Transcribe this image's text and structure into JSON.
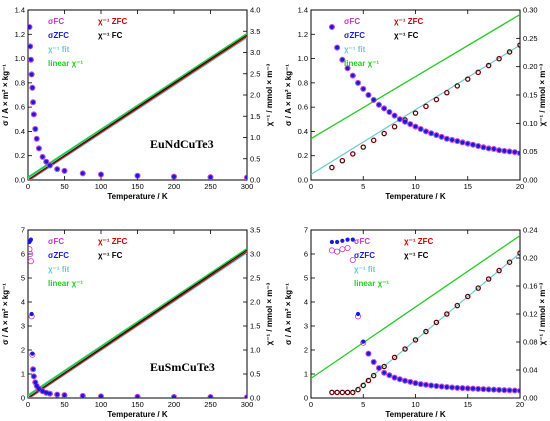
{
  "chart_data": [
    {
      "id": "p1",
      "type": "scatter",
      "compound_label": "EuNdCuTe3",
      "xlabel": "Temperature / K",
      "ylabel_left": "σ / A × m² × kg⁻¹",
      "ylabel_right": "χ⁻¹ / mmol × m⁻³",
      "xlim": [
        0,
        300
      ],
      "ylim_left": [
        0,
        1.4
      ],
      "ylim_right": [
        0,
        4.0
      ],
      "xticks": [
        0,
        50,
        100,
        150,
        200,
        250,
        300
      ],
      "yticks_left": [
        0.0,
        0.2,
        0.4,
        0.6,
        0.8,
        1.0,
        1.2,
        1.4
      ],
      "yticks_right": [
        0.0,
        0.5,
        1.0,
        1.5,
        2.0,
        2.5,
        3.0,
        3.5,
        4.0
      ],
      "legend": [
        "σFC",
        "σZFC",
        "χ⁻¹ ZFC",
        "χ⁻¹ FC",
        "χ⁻¹ fit",
        "linear χ⁻¹"
      ],
      "series": [
        {
          "name": "σFC",
          "axis": "left",
          "x": [
            2,
            3,
            4,
            5,
            6,
            7,
            8,
            10,
            12,
            15,
            20,
            25,
            30,
            40,
            50,
            75,
            100,
            150,
            200,
            250,
            300
          ],
          "values": [
            1.26,
            1.1,
            0.99,
            0.87,
            0.76,
            0.64,
            0.54,
            0.42,
            0.34,
            0.26,
            0.19,
            0.15,
            0.12,
            0.09,
            0.075,
            0.055,
            0.045,
            0.035,
            0.028,
            0.024,
            0.021
          ]
        },
        {
          "name": "σZFC",
          "axis": "left",
          "x": [
            2,
            3,
            4,
            5,
            6,
            7,
            8,
            10,
            12,
            15,
            20,
            25,
            30,
            40,
            50,
            75,
            100,
            150,
            200,
            250,
            300
          ],
          "values": [
            1.26,
            1.1,
            0.99,
            0.87,
            0.76,
            0.64,
            0.54,
            0.42,
            0.34,
            0.26,
            0.19,
            0.15,
            0.12,
            0.09,
            0.075,
            0.055,
            0.045,
            0.035,
            0.028,
            0.024,
            0.021
          ]
        },
        {
          "name": "χ⁻¹ ZFC",
          "axis": "right",
          "x": [
            2,
            300
          ],
          "values": [
            0.01,
            3.38
          ]
        },
        {
          "name": "χ⁻¹ FC",
          "axis": "right",
          "x": [
            2,
            300
          ],
          "values": [
            0.02,
            3.42
          ]
        },
        {
          "name": "χ⁻¹ fit",
          "axis": "right",
          "x": [
            0,
            300
          ],
          "values": [
            0.02,
            3.4
          ]
        },
        {
          "name": "linear χ⁻¹",
          "axis": "right",
          "x": [
            0,
            300
          ],
          "values": [
            0.06,
            3.44
          ]
        }
      ]
    },
    {
      "id": "p2",
      "type": "scatter",
      "xlabel": "Temperature / K",
      "ylabel_left": "σ / A × m² × kg⁻¹",
      "ylabel_right": "χ⁻¹ / mmol × m⁻³",
      "xlim": [
        0,
        20
      ],
      "ylim_left": [
        0,
        1.4
      ],
      "ylim_right": [
        0,
        0.3
      ],
      "xticks": [
        0,
        5,
        10,
        15,
        20
      ],
      "yticks_left": [
        0.0,
        0.2,
        0.4,
        0.6,
        0.8,
        1.0,
        1.2,
        1.4
      ],
      "yticks_right": [
        0.0,
        0.05,
        0.1,
        0.15,
        0.2,
        0.25,
        0.3
      ],
      "legend": [
        "σFC",
        "σZFC",
        "χ⁻¹ ZFC",
        "χ⁻¹ FC",
        "χ⁻¹ fit",
        "linear χ⁻¹"
      ],
      "series": [
        {
          "name": "σFC",
          "axis": "left",
          "x": [
            2,
            2.5,
            3,
            3.5,
            4,
            4.5,
            5,
            5.5,
            6,
            6.5,
            7,
            7.5,
            8,
            8.5,
            9,
            9.5,
            10,
            10.5,
            11,
            11.5,
            12,
            12.5,
            13,
            13.5,
            14,
            14.5,
            15,
            15.5,
            16,
            16.5,
            17,
            17.5,
            18,
            18.5,
            19,
            19.5,
            20
          ],
          "values": [
            1.26,
            1.09,
            0.99,
            0.92,
            0.86,
            0.8,
            0.75,
            0.7,
            0.66,
            0.62,
            0.59,
            0.56,
            0.53,
            0.5,
            0.48,
            0.46,
            0.44,
            0.42,
            0.4,
            0.385,
            0.37,
            0.355,
            0.34,
            0.33,
            0.32,
            0.31,
            0.3,
            0.29,
            0.28,
            0.27,
            0.26,
            0.255,
            0.245,
            0.24,
            0.235,
            0.23,
            0.22
          ]
        },
        {
          "name": "σZFC",
          "axis": "left",
          "x": [
            2,
            2.5,
            3,
            3.5,
            4,
            4.5,
            5,
            5.5,
            6,
            6.5,
            7,
            7.5,
            8,
            8.5,
            9,
            9.5,
            10,
            10.5,
            11,
            11.5,
            12,
            12.5,
            13,
            13.5,
            14,
            14.5,
            15,
            15.5,
            16,
            16.5,
            17,
            17.5,
            18,
            18.5,
            19,
            19.5,
            20
          ],
          "values": [
            1.26,
            1.09,
            0.99,
            0.92,
            0.86,
            0.8,
            0.75,
            0.7,
            0.66,
            0.62,
            0.59,
            0.56,
            0.53,
            0.5,
            0.48,
            0.46,
            0.44,
            0.42,
            0.4,
            0.385,
            0.37,
            0.355,
            0.34,
            0.33,
            0.32,
            0.31,
            0.3,
            0.29,
            0.28,
            0.27,
            0.26,
            0.255,
            0.245,
            0.24,
            0.235,
            0.23,
            0.22
          ]
        },
        {
          "name": "χ⁻¹ ZFC",
          "axis": "right",
          "x": [
            2,
            3,
            4,
            5,
            6,
            7,
            8,
            9,
            10,
            11,
            12,
            13,
            14,
            15,
            16,
            17,
            18,
            19,
            20
          ],
          "values": [
            0.022,
            0.034,
            0.046,
            0.058,
            0.07,
            0.082,
            0.094,
            0.106,
            0.118,
            0.13,
            0.142,
            0.154,
            0.166,
            0.178,
            0.19,
            0.202,
            0.214,
            0.226,
            0.238
          ]
        },
        {
          "name": "χ⁻¹ FC",
          "axis": "right",
          "x": [
            2,
            3,
            4,
            5,
            6,
            7,
            8,
            9,
            10,
            11,
            12,
            13,
            14,
            15,
            16,
            17,
            18,
            19,
            20
          ],
          "values": [
            0.022,
            0.034,
            0.046,
            0.058,
            0.07,
            0.082,
            0.094,
            0.106,
            0.118,
            0.13,
            0.142,
            0.154,
            0.166,
            0.178,
            0.19,
            0.202,
            0.214,
            0.226,
            0.238
          ]
        },
        {
          "name": "χ⁻¹ fit",
          "axis": "right",
          "x": [
            0,
            20
          ],
          "values": [
            0.01,
            0.238
          ]
        },
        {
          "name": "linear χ⁻¹",
          "axis": "right",
          "x": [
            0,
            20
          ],
          "values": [
            0.073,
            0.292
          ]
        }
      ]
    },
    {
      "id": "p3",
      "type": "scatter",
      "compound_label": "EuSmCuTe3",
      "xlabel": "Temperature / K",
      "ylabel_left": "σ / A × m² × kg⁻¹",
      "ylabel_right": "χ⁻¹ / mmol × m⁻³",
      "xlim": [
        0,
        300
      ],
      "ylim_left": [
        0,
        7
      ],
      "ylim_right": [
        0,
        3.5
      ],
      "xticks": [
        0,
        50,
        100,
        150,
        200,
        250,
        300
      ],
      "yticks_left": [
        0,
        1,
        2,
        3,
        4,
        5,
        6,
        7
      ],
      "yticks_right": [
        0.0,
        0.5,
        1.0,
        1.5,
        2.0,
        2.5,
        3.0,
        3.5
      ],
      "legend": [
        "σFC",
        "σZFC",
        "χ⁻¹ ZFC",
        "χ⁻¹ FC",
        "χ⁻¹ fit",
        "linear χ⁻¹"
      ],
      "series": [
        {
          "name": "σFC",
          "axis": "left",
          "x": [
            2,
            3,
            4,
            5,
            6,
            7,
            8,
            10,
            12,
            15,
            20,
            25,
            30,
            40,
            50,
            75,
            100,
            150,
            200,
            250,
            300
          ],
          "values": [
            6.2,
            6.0,
            5.7,
            3.4,
            1.8,
            1.2,
            0.9,
            0.65,
            0.5,
            0.38,
            0.28,
            0.22,
            0.18,
            0.14,
            0.12,
            0.09,
            0.07,
            0.05,
            0.04,
            0.035,
            0.03
          ]
        },
        {
          "name": "σZFC",
          "axis": "left",
          "x": [
            2,
            3,
            4,
            5,
            6,
            7,
            8,
            10,
            12,
            15,
            20,
            25,
            30,
            40,
            50,
            75,
            100,
            150,
            200,
            250,
            300
          ],
          "values": [
            6.5,
            6.55,
            6.6,
            3.5,
            1.85,
            1.2,
            0.9,
            0.65,
            0.5,
            0.38,
            0.28,
            0.22,
            0.18,
            0.14,
            0.12,
            0.09,
            0.07,
            0.05,
            0.04,
            0.035,
            0.03
          ]
        },
        {
          "name": "χ⁻¹ ZFC",
          "axis": "right",
          "x": [
            2,
            300
          ],
          "values": [
            0.01,
            3.05
          ]
        },
        {
          "name": "χ⁻¹ FC",
          "axis": "right",
          "x": [
            2,
            300
          ],
          "values": [
            0.02,
            3.09
          ]
        },
        {
          "name": "χ⁻¹ fit",
          "axis": "right",
          "x": [
            0,
            300
          ],
          "values": [
            0.02,
            3.07
          ]
        },
        {
          "name": "linear χ⁻¹",
          "axis": "right",
          "x": [
            0,
            300
          ],
          "values": [
            0.05,
            3.11
          ]
        }
      ]
    },
    {
      "id": "p4",
      "type": "scatter",
      "xlabel": "Temperature / K",
      "ylabel_left": "σ / A × m² × kg⁻¹",
      "ylabel_right": "χ⁻¹ / mmol × m⁻³",
      "xlim": [
        0,
        20
      ],
      "ylim_left": [
        0,
        7
      ],
      "ylim_right": [
        0,
        0.24
      ],
      "xticks": [
        0,
        5,
        10,
        15,
        20
      ],
      "yticks_left": [
        0,
        1,
        2,
        3,
        4,
        5,
        6,
        7
      ],
      "yticks_right": [
        0.0,
        0.04,
        0.08,
        0.12,
        0.16,
        0.2,
        0.24
      ],
      "legend": [
        "σFC",
        "σZFC",
        "χ⁻¹ ZFC",
        "χ⁻¹ FC",
        "χ⁻¹ fit",
        "linear χ⁻¹"
      ],
      "series": [
        {
          "name": "σFC",
          "axis": "left",
          "x": [
            2,
            2.5,
            3,
            3.5,
            4,
            4.5,
            5,
            5.5,
            6,
            6.5,
            7,
            7.5,
            8,
            8.5,
            9,
            9.5,
            10,
            10.5,
            11,
            11.5,
            12,
            12.5,
            13,
            13.5,
            14,
            14.5,
            15,
            15.5,
            16,
            16.5,
            17,
            17.5,
            18,
            18.5,
            19,
            19.5,
            20
          ],
          "values": [
            6.15,
            6.1,
            6.2,
            6.25,
            5.75,
            3.4,
            2.3,
            1.85,
            1.5,
            1.25,
            1.05,
            0.95,
            0.85,
            0.78,
            0.72,
            0.67,
            0.62,
            0.58,
            0.55,
            0.52,
            0.5,
            0.48,
            0.46,
            0.44,
            0.42,
            0.41,
            0.4,
            0.39,
            0.38,
            0.37,
            0.36,
            0.35,
            0.34,
            0.33,
            0.32,
            0.31,
            0.3
          ]
        },
        {
          "name": "σZFC",
          "axis": "left",
          "x": [
            2,
            2.5,
            3,
            3.5,
            4,
            4.5,
            5,
            5.5,
            6,
            6.5,
            7,
            7.5,
            8,
            8.5,
            9,
            9.5,
            10,
            10.5,
            11,
            11.5,
            12,
            12.5,
            13,
            13.5,
            14,
            14.5,
            15,
            15.5,
            16,
            16.5,
            17,
            17.5,
            18,
            18.5,
            19,
            19.5,
            20
          ],
          "values": [
            6.5,
            6.5,
            6.55,
            6.6,
            6.6,
            3.5,
            2.35,
            1.85,
            1.5,
            1.25,
            1.05,
            0.95,
            0.85,
            0.78,
            0.72,
            0.67,
            0.62,
            0.58,
            0.55,
            0.52,
            0.5,
            0.48,
            0.46,
            0.44,
            0.42,
            0.41,
            0.4,
            0.39,
            0.38,
            0.37,
            0.36,
            0.35,
            0.34,
            0.33,
            0.32,
            0.31,
            0.3
          ]
        },
        {
          "name": "χ⁻¹ ZFC",
          "axis": "right",
          "x": [
            2,
            2.5,
            3,
            3.5,
            4,
            4.5,
            5,
            5.5,
            6,
            7,
            8,
            9,
            10,
            11,
            12,
            13,
            14,
            15,
            16,
            17,
            18,
            19,
            20
          ],
          "values": [
            0.008,
            0.008,
            0.008,
            0.008,
            0.008,
            0.012,
            0.018,
            0.025,
            0.032,
            0.045,
            0.058,
            0.07,
            0.083,
            0.095,
            0.108,
            0.12,
            0.132,
            0.145,
            0.157,
            0.17,
            0.182,
            0.194,
            0.207
          ]
        },
        {
          "name": "χ⁻¹ FC",
          "axis": "right",
          "x": [
            2,
            2.5,
            3,
            3.5,
            4,
            4.5,
            5,
            5.5,
            6,
            7,
            8,
            9,
            10,
            11,
            12,
            13,
            14,
            15,
            16,
            17,
            18,
            19,
            20
          ],
          "values": [
            0.008,
            0.008,
            0.008,
            0.008,
            0.008,
            0.012,
            0.018,
            0.025,
            0.032,
            0.045,
            0.058,
            0.07,
            0.083,
            0.095,
            0.108,
            0.12,
            0.132,
            0.145,
            0.157,
            0.17,
            0.182,
            0.194,
            0.207
          ]
        },
        {
          "name": "χ⁻¹ fit",
          "axis": "right",
          "x": [
            4,
            20
          ],
          "values": [
            0.008,
            0.207
          ]
        },
        {
          "name": "linear χ⁻¹",
          "axis": "right",
          "x": [
            0,
            20
          ],
          "values": [
            0.028,
            0.232
          ]
        }
      ]
    }
  ],
  "style": {
    "sigma_fc_color": "#cc33cc",
    "sigma_zfc_color": "#1a1ad9",
    "chi_zfc_color": "#cc0000",
    "chi_fc_color": "#000000",
    "chi_fit_color": "#66cccc",
    "linear_chi_color": "#22cc22"
  }
}
